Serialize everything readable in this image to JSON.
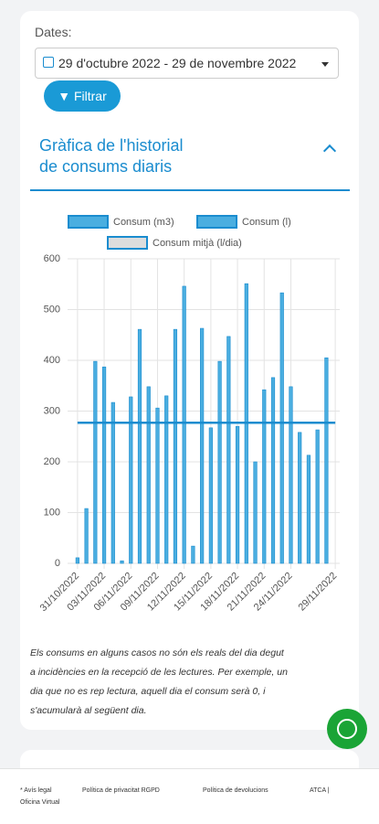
{
  "filter": {
    "label": "Dates:",
    "range": "29 d'octubre 2022 - 29 de novembre 2022",
    "button": "Filtrar"
  },
  "section": {
    "title_lines": [
      "Gràfica de l'historial",
      "de consums diaris"
    ]
  },
  "chart_data": {
    "type": "bar",
    "categories": [
      "31/10/2022",
      null,
      null,
      "03/11/2022",
      null,
      null,
      "06/11/2022",
      null,
      null,
      "09/11/2022",
      null,
      null,
      "12/11/2022",
      null,
      null,
      "15/11/2022",
      null,
      null,
      "18/11/2022",
      null,
      null,
      "21/11/2022",
      null,
      null,
      "24/11/2022",
      null,
      null,
      null,
      null,
      "29/11/2022"
    ],
    "series": [
      {
        "name": "Consum (m3)",
        "color": "#4aaee0",
        "values": [
          null,
          null,
          null,
          null,
          null,
          null,
          null,
          null,
          null,
          null,
          null,
          null,
          null,
          null,
          null,
          null,
          null,
          null,
          null,
          null,
          null,
          null,
          null,
          null,
          null,
          null,
          null,
          null,
          null,
          null
        ]
      },
      {
        "name": "Consum (l)",
        "color": "#4aaee0",
        "values": [
          11,
          108,
          398,
          387,
          317,
          5,
          328,
          461,
          348,
          306,
          330,
          461,
          546,
          34,
          463,
          267,
          398,
          447,
          270,
          551,
          200,
          342,
          366,
          533,
          348,
          258,
          213,
          263,
          405,
          null
        ]
      },
      {
        "name": "Consum mitjà (l/dia)",
        "type": "line",
        "color": "#1a8ccf",
        "values": [
          277,
          277,
          277,
          277,
          277,
          277,
          277,
          277,
          277,
          277,
          277,
          277,
          277,
          277,
          277,
          277,
          277,
          277,
          277,
          277,
          277,
          277,
          277,
          277,
          277,
          277,
          277,
          277,
          277,
          277
        ]
      }
    ],
    "ylim": [
      0,
      600
    ],
    "yticks": [
      0,
      100,
      200,
      300,
      400,
      500,
      600
    ],
    "grid": true
  },
  "note": {
    "lines": [
      "Els consums en alguns casos no són els reals del dia degut",
      "a incidències en la recepció de les lectures. Per exemple, un",
      "dia que no es rep lectura, aquell dia el consum serà 0, i",
      "s'acumularà al següent dia."
    ]
  },
  "footer": {
    "links": [
      "* Avís legal",
      "Política de privacitat RGPD",
      "Política de devolucions",
      "ATCA |",
      "Oficina Virtual"
    ]
  }
}
